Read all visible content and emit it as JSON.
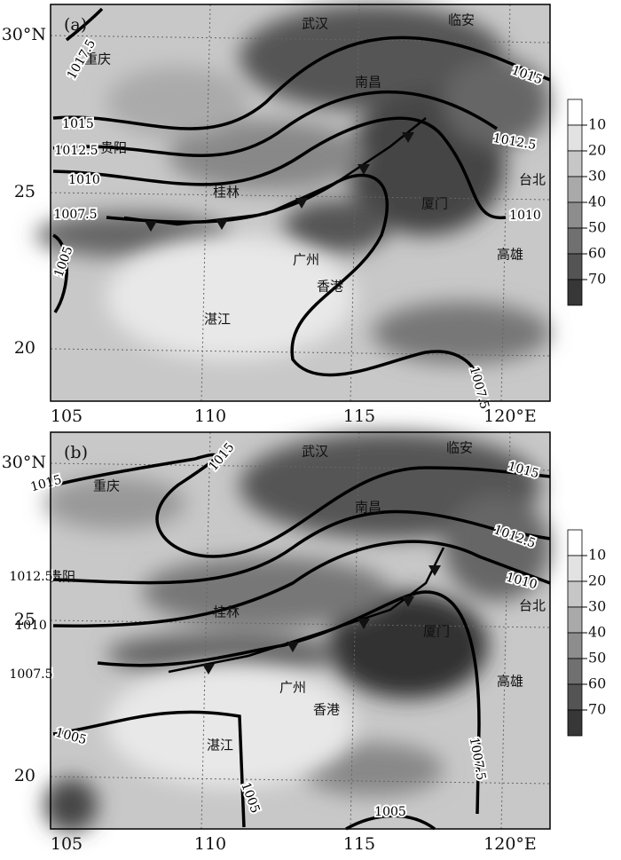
{
  "panels": [
    {
      "label": "(a)",
      "cities": [
        "武汉",
        "临安",
        "重庆",
        "南昌",
        "贵阳",
        "桂林",
        "台北",
        "厦门",
        "高雄",
        "广州",
        "香港",
        "湛江"
      ],
      "isobar_labels": [
        "1017.5",
        "1015",
        "1012.5",
        "1010",
        "1007.5",
        "1005",
        "1015",
        "1012.5",
        "1010",
        "1007.5"
      ]
    },
    {
      "label": "(b)",
      "cities": [
        "武汉",
        "临安",
        "重庆",
        "南昌",
        "贵阳",
        "桂林",
        "台北",
        "厦门",
        "高雄",
        "广州",
        "香港",
        "湛江"
      ],
      "isobar_labels": [
        "1015",
        "1015",
        "1015",
        "1012.5",
        "1012.5",
        "1010",
        "1010",
        "1007.5",
        "1005",
        "1005",
        "1005",
        "1007.5"
      ]
    }
  ],
  "x_axis": {
    "ticks": [
      "105",
      "110",
      "115",
      "120°E"
    ]
  },
  "y_axis": {
    "ticks": [
      "30°N",
      "25",
      "20"
    ]
  },
  "colorbar": {
    "ticks": [
      10,
      20,
      30,
      40,
      50,
      60,
      70
    ]
  }
}
